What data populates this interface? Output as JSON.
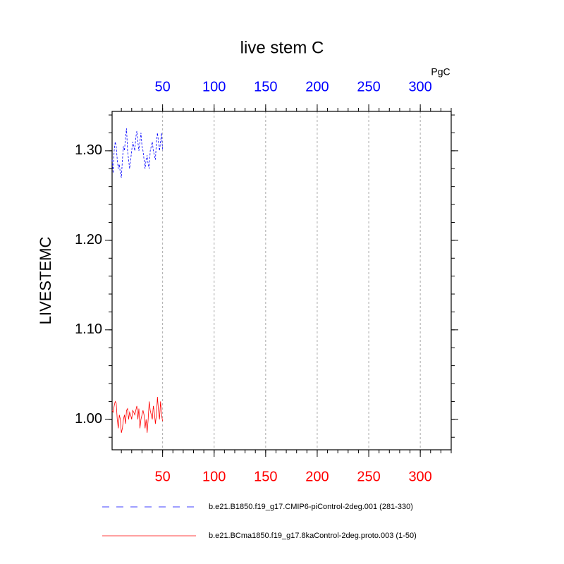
{
  "chart_data": {
    "type": "line",
    "title": "live stem C",
    "units": "PgC",
    "ylabel": "LIVESTEMC",
    "x": [
      1,
      2,
      3,
      4,
      5,
      6,
      7,
      8,
      9,
      10,
      11,
      12,
      13,
      14,
      15,
      16,
      17,
      18,
      19,
      20,
      21,
      22,
      23,
      24,
      25,
      26,
      27,
      28,
      29,
      30,
      31,
      32,
      33,
      34,
      35,
      36,
      37,
      38,
      39,
      40,
      41,
      42,
      43,
      44,
      45,
      46,
      47,
      48,
      49,
      50
    ],
    "series": [
      {
        "name": "b.e21.B1850.f19_g17.CMIP6-piControl-2deg.001 (281-330)",
        "color": "#0000ff",
        "dash": true,
        "values": [
          1.29,
          1.275,
          1.3,
          1.31,
          1.305,
          1.29,
          1.28,
          1.285,
          1.275,
          1.27,
          1.29,
          1.305,
          1.3,
          1.315,
          1.325,
          1.3,
          1.29,
          1.28,
          1.29,
          1.3,
          1.31,
          1.305,
          1.3,
          1.315,
          1.322,
          1.31,
          1.3,
          1.31,
          1.32,
          1.305,
          1.3,
          1.29,
          1.28,
          1.29,
          1.295,
          1.285,
          1.28,
          1.3,
          1.305,
          1.31,
          1.3,
          1.295,
          1.29,
          1.31,
          1.32,
          1.31,
          1.3,
          1.31,
          1.32,
          1.3
        ]
      },
      {
        "name": "b.e21.BCma1850.f19_g17.8kaControl-2deg.proto.003 (1-50)",
        "color": "#ff0000",
        "dash": false,
        "values": [
          1.01,
          1.008,
          1.015,
          1.02,
          1.018,
          1,
          0.99,
          1.005,
          1,
          0.985,
          0.99,
          1,
          1.005,
          0.995,
          1.01,
          1.012,
          1,
          1.008,
          1.005,
          1,
          1.01,
          1.008,
          1.005,
          1.01,
          1.015,
          1,
          1.012,
          0.99,
          1,
          1.005,
          1.01,
          1.005,
          0.99,
          1,
          0.985,
          1,
          1.02,
          1.01,
          1.005,
          1,
          1.015,
          1.008,
          0.995,
          1.005,
          1.025,
          1.01,
          1,
          1.02,
          1.005,
          0.998
        ]
      }
    ],
    "xlim": [
      1,
      330
    ],
    "xticks": [
      50,
      100,
      150,
      200,
      250,
      300
    ],
    "xtick_color": "#ff0000",
    "x2lim": [
      1,
      330
    ],
    "x2ticks": [
      50,
      100,
      150,
      200,
      250,
      300
    ],
    "x2tick_color": "#0000ff",
    "ylim": [
      0.966,
      1.344
    ],
    "yticks": [
      {
        "value": 1.0,
        "label": "1.00"
      },
      {
        "value": 1.1,
        "label": "1.10"
      },
      {
        "value": 1.2,
        "label": "1.20"
      },
      {
        "value": 1.3,
        "label": "1.30"
      }
    ],
    "grid": true
  }
}
